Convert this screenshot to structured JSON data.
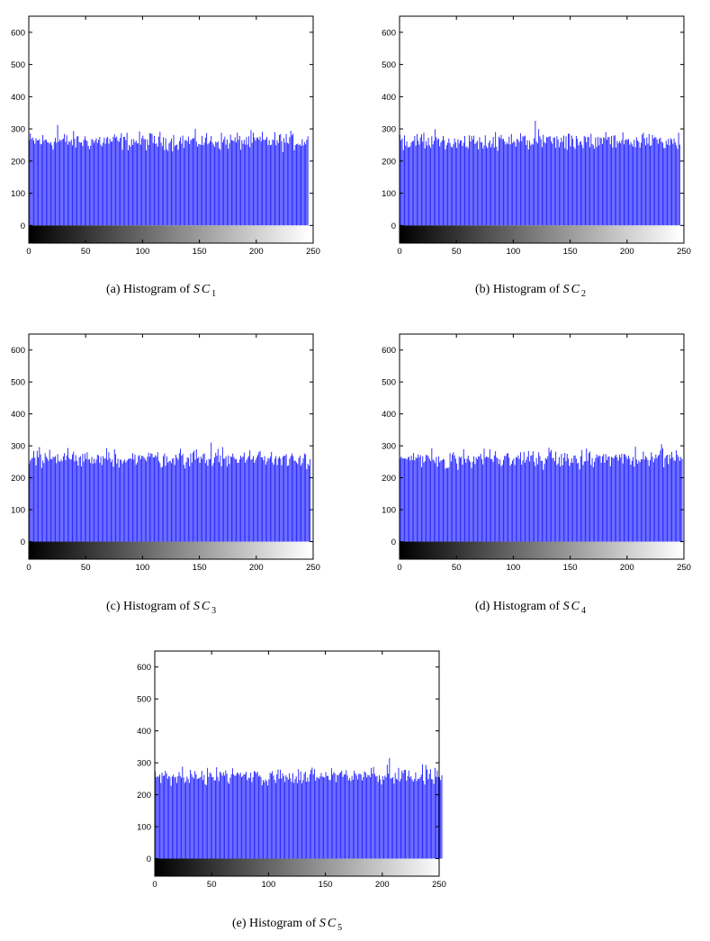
{
  "colors": {
    "bar": "#1c1cff",
    "bar_edge": "#0000cc",
    "axis": "#000000"
  },
  "panels": [
    {
      "id": "a",
      "caption": {
        "prefix": "(a)  Histogram of ",
        "symbol": "SC",
        "sub": "1"
      }
    },
    {
      "id": "b",
      "caption": {
        "prefix": "(b)  Histogram of ",
        "symbol": "SC",
        "sub": "2"
      }
    },
    {
      "id": "c",
      "caption": {
        "prefix": "(c)  Histogram of ",
        "symbol": "SC",
        "sub": "3"
      }
    },
    {
      "id": "d",
      "caption": {
        "prefix": "(d)  Histogram of ",
        "symbol": "SC",
        "sub": "4"
      }
    },
    {
      "id": "e",
      "caption": {
        "prefix": "(e)  Histogram of ",
        "symbol": "SC",
        "sub": "5"
      }
    }
  ],
  "chart_data": [
    {
      "type": "bar",
      "title": "",
      "xlabel": "",
      "ylabel": "",
      "xlim": [
        0,
        250
      ],
      "ylim": [
        -55,
        650
      ],
      "xticks": [
        0,
        50,
        100,
        150,
        200,
        250
      ],
      "yticks": [
        0,
        100,
        200,
        300,
        400,
        500,
        600
      ],
      "grid": false,
      "colorbar": "grayscale",
      "bins": 246,
      "mean": 262,
      "min": 228,
      "max": 312,
      "series": [
        {
          "values": []
        }
      ]
    },
    {
      "type": "bar",
      "title": "",
      "xlabel": "",
      "ylabel": "",
      "xlim": [
        0,
        250
      ],
      "ylim": [
        -55,
        650
      ],
      "xticks": [
        0,
        50,
        100,
        150,
        200,
        250
      ],
      "yticks": [
        0,
        100,
        200,
        300,
        400,
        500,
        600
      ],
      "grid": false,
      "colorbar": "grayscale",
      "bins": 247,
      "mean": 262,
      "min": 225,
      "max": 325,
      "series": [
        {
          "values": []
        }
      ]
    },
    {
      "type": "bar",
      "title": "",
      "xlabel": "",
      "ylabel": "",
      "xlim": [
        0,
        250
      ],
      "ylim": [
        -55,
        650
      ],
      "xticks": [
        0,
        50,
        100,
        150,
        200,
        250
      ],
      "yticks": [
        0,
        100,
        200,
        300,
        400,
        500,
        600
      ],
      "grid": false,
      "colorbar": "grayscale",
      "bins": 248,
      "mean": 262,
      "min": 215,
      "max": 310,
      "series": [
        {
          "values": []
        }
      ]
    },
    {
      "type": "bar",
      "title": "",
      "xlabel": "",
      "ylabel": "",
      "xlim": [
        0,
        250
      ],
      "ylim": [
        -55,
        650
      ],
      "xticks": [
        0,
        50,
        100,
        150,
        200,
        250
      ],
      "yticks": [
        0,
        100,
        200,
        300,
        400,
        500,
        600
      ],
      "grid": false,
      "colorbar": "grayscale",
      "bins": 249,
      "mean": 262,
      "min": 225,
      "max": 305,
      "series": [
        {
          "values": []
        }
      ]
    },
    {
      "type": "bar",
      "title": "",
      "xlabel": "",
      "ylabel": "",
      "xlim": [
        0,
        250
      ],
      "ylim": [
        -55,
        650
      ],
      "xticks": [
        0,
        50,
        100,
        150,
        200,
        250
      ],
      "yticks": [
        0,
        100,
        200,
        300,
        400,
        500,
        600
      ],
      "grid": false,
      "colorbar": "grayscale",
      "bins": 253,
      "mean": 258,
      "min": 210,
      "max": 315,
      "series": [
        {
          "values": []
        }
      ]
    }
  ]
}
